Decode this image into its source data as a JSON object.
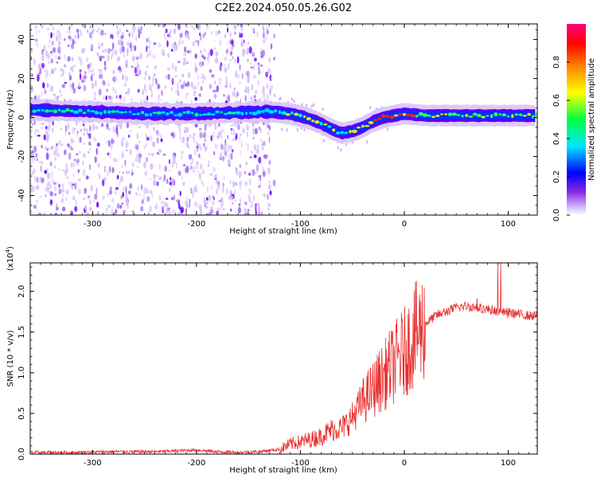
{
  "figure": {
    "title": "C2E2.2024.050.05.26.G02"
  },
  "colors": {
    "spectrum_base": "#5a00ff",
    "ridge_mid": "#00e5ff",
    "ridge_high": "#ff1010",
    "snr_line": "#e83030",
    "axis": "#000000"
  },
  "chart_data": [
    {
      "type": "heatmap",
      "title": "C2E2.2024.050.05.26.G02",
      "xlabel": "Height of straight line (km)",
      "ylabel": "Frequency (Hz)",
      "xlim": [
        -360,
        128
      ],
      "ylim": [
        -50,
        48
      ],
      "xticks": [
        -300,
        -200,
        -100,
        0,
        100
      ],
      "xtick_labels": [
        "-300",
        "-200",
        "-100",
        "0",
        "100"
      ],
      "yticks": [
        -40,
        -20,
        0,
        20,
        40
      ],
      "ytick_labels": [
        "-40",
        "-20",
        "0",
        "20",
        "40"
      ],
      "ridge": {
        "x": [
          -360,
          -300,
          -250,
          -200,
          -130,
          -110,
          -95,
          -80,
          -70,
          -60,
          -50,
          -40,
          -30,
          -20,
          -10,
          0,
          20,
          50,
          100,
          128
        ],
        "freq": [
          4,
          3,
          2,
          2,
          3,
          2,
          0,
          -3,
          -6,
          -8,
          -7,
          -5,
          -2,
          0,
          1,
          2,
          1,
          1,
          1,
          1
        ]
      },
      "colorbar": {
        "label": "Normalized spectral amplitude",
        "range": [
          0,
          1
        ],
        "ticks": [
          0.0,
          0.2,
          0.4,
          0.6,
          0.8
        ],
        "tick_labels": [
          "0.0",
          "0.2",
          "0.4",
          "0.6",
          "0.8"
        ],
        "colormap": [
          "#ffffff",
          "#8a2be2",
          "#0000ff",
          "#00e5ff",
          "#00ff40",
          "#ffff00",
          "#ff8000",
          "#ff0000",
          "#ff007f"
        ]
      }
    },
    {
      "type": "line",
      "xlabel": "Height of straight line (km)",
      "ylabel": "SNR (10 * v/v)",
      "y_multiplier_label": "(x10",
      "y_multiplier_exp": "4",
      "y_multiplier_close": ")",
      "xlim": [
        -360,
        128
      ],
      "ylim": [
        0,
        2.35
      ],
      "xticks": [
        -300,
        -200,
        -100,
        0,
        100
      ],
      "xtick_labels": [
        "-300",
        "-200",
        "-100",
        "0",
        "100"
      ],
      "yticks": [
        0.0,
        0.5,
        1.0,
        1.5,
        2.0
      ],
      "ytick_labels": [
        "0.0",
        "0.5",
        "1.0",
        "1.5",
        "2.0"
      ],
      "series": [
        {
          "name": "SNR",
          "x": [
            -360,
            -320,
            -280,
            -240,
            -200,
            -180,
            -160,
            -140,
            -120,
            -110,
            -100,
            -90,
            -80,
            -70,
            -60,
            -50,
            -45,
            -40,
            -35,
            -30,
            -25,
            -20,
            -15,
            -10,
            -5,
            0,
            5,
            10,
            15,
            20,
            25,
            30,
            40,
            50,
            60,
            70,
            80,
            90,
            100,
            110,
            120,
            128
          ],
          "values": [
            0.02,
            0.02,
            0.03,
            0.03,
            0.05,
            0.03,
            0.02,
            0.03,
            0.06,
            0.12,
            0.15,
            0.18,
            0.22,
            0.3,
            0.32,
            0.45,
            0.55,
            0.65,
            0.72,
            0.8,
            0.88,
            0.95,
            1.05,
            1.1,
            1.2,
            1.25,
            1.35,
            1.45,
            1.52,
            1.6,
            1.65,
            1.7,
            1.75,
            1.8,
            1.82,
            1.8,
            1.78,
            1.76,
            1.74,
            1.72,
            1.7,
            1.7
          ]
        }
      ]
    }
  ]
}
